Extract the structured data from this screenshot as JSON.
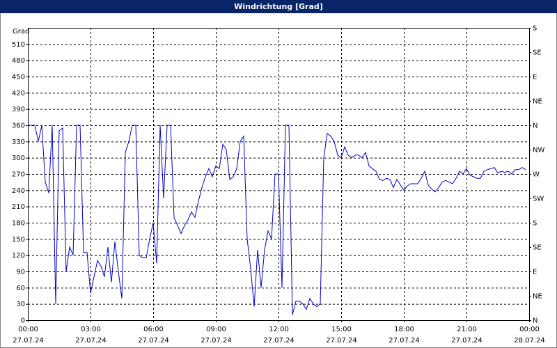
{
  "chart_data": {
    "type": "line",
    "title": "Windrichtung [Grad]",
    "y_label": "Grad",
    "x": [
      0,
      10,
      20,
      30,
      40,
      50,
      60,
      70,
      80,
      90,
      100,
      110,
      120,
      130,
      140,
      150,
      160,
      170,
      180,
      190,
      200,
      210,
      220,
      230,
      240,
      250,
      260,
      270,
      280,
      290,
      300,
      310,
      320,
      330,
      340,
      350,
      360,
      370,
      380,
      390,
      400,
      410,
      420,
      430,
      440,
      450,
      460,
      470,
      480,
      490,
      500,
      510,
      520,
      530,
      540,
      550,
      560,
      570,
      580,
      590,
      600,
      610,
      620,
      630,
      640,
      650,
      660,
      670,
      680,
      690,
      700,
      710,
      720,
      730,
      740,
      750,
      760,
      770,
      780,
      790,
      800,
      810,
      820,
      830,
      840,
      850,
      860,
      870,
      880,
      890,
      900,
      910,
      920,
      930,
      940,
      950,
      960,
      970,
      980,
      990,
      1000,
      1010,
      1020,
      1030,
      1040,
      1050,
      1060,
      1070,
      1080,
      1090,
      1100,
      1110,
      1120,
      1130,
      1140,
      1150,
      1160,
      1170,
      1180,
      1190,
      1200,
      1210,
      1220,
      1230,
      1240,
      1250,
      1260,
      1270,
      1280,
      1290,
      1300,
      1310,
      1320,
      1330,
      1340,
      1350,
      1360,
      1370,
      1380,
      1390,
      1400,
      1410,
      1420,
      1430
    ],
    "series": [
      {
        "color": "#0000c8",
        "values": [
          360,
          360,
          360,
          330,
          360,
          255,
          235,
          360,
          30,
          350,
          355,
          90,
          135,
          120,
          360,
          360,
          125,
          125,
          50,
          80,
          110,
          100,
          80,
          135,
          70,
          145,
          90,
          40,
          310,
          330,
          360,
          360,
          120,
          115,
          115,
          150,
          180,
          105,
          360,
          225,
          360,
          360,
          190,
          175,
          160,
          175,
          185,
          200,
          190,
          220,
          245,
          265,
          280,
          265,
          285,
          280,
          325,
          315,
          260,
          265,
          280,
          330,
          340,
          150,
          95,
          25,
          130,
          60,
          130,
          165,
          150,
          270,
          270,
          60,
          360,
          360,
          10,
          35,
          35,
          30,
          20,
          40,
          30,
          25,
          30,
          300,
          345,
          340,
          330,
          305,
          300,
          320,
          305,
          300,
          305,
          305,
          300,
          310,
          285,
          280,
          275,
          260,
          258,
          262,
          260,
          245,
          260,
          250,
          240,
          248,
          252,
          252,
          252,
          262,
          275,
          250,
          242,
          237,
          245,
          255,
          258,
          255,
          252,
          262,
          275,
          270,
          280,
          268,
          265,
          262,
          262,
          275,
          278,
          280,
          282,
          272,
          275,
          273,
          275,
          270,
          278,
          278,
          282,
          278
        ]
      }
    ],
    "xlim": [
      0,
      1440
    ],
    "xticks": [
      {
        "value": 0,
        "label": "00:00",
        "sublabel": "27.07.24"
      },
      {
        "value": 180,
        "label": "03:00",
        "sublabel": "27.07.24"
      },
      {
        "value": 360,
        "label": "06:00",
        "sublabel": "27.07.24"
      },
      {
        "value": 540,
        "label": "09:00",
        "sublabel": "27.07.24"
      },
      {
        "value": 720,
        "label": "12:00",
        "sublabel": "27.07.24"
      },
      {
        "value": 900,
        "label": "15:00",
        "sublabel": "27.07.24"
      },
      {
        "value": 1080,
        "label": "18:00",
        "sublabel": "27.07.24"
      },
      {
        "value": 1260,
        "label": "21:00",
        "sublabel": "27.07.24"
      },
      {
        "value": 1440,
        "label": "00:00",
        "sublabel": "28.07.24"
      }
    ],
    "ylim": [
      0,
      540
    ],
    "yticks": [
      0,
      30,
      60,
      90,
      120,
      150,
      180,
      210,
      240,
      270,
      300,
      330,
      360,
      390,
      420,
      450,
      480,
      510
    ],
    "y2lim": [
      0,
      540
    ],
    "y2ticks": [
      {
        "value": 0,
        "label": "N"
      },
      {
        "value": 45,
        "label": "NE"
      },
      {
        "value": 90,
        "label": "E"
      },
      {
        "value": 135,
        "label": "SE"
      },
      {
        "value": 180,
        "label": "S"
      },
      {
        "value": 225,
        "label": "SW"
      },
      {
        "value": 270,
        "label": "W"
      },
      {
        "value": 315,
        "label": "NW"
      },
      {
        "value": 360,
        "label": "N"
      },
      {
        "value": 405,
        "label": "NE"
      },
      {
        "value": 450,
        "label": "E"
      },
      {
        "value": 495,
        "label": "SE"
      },
      {
        "value": 540,
        "label": "S"
      }
    ],
    "grid": true
  }
}
